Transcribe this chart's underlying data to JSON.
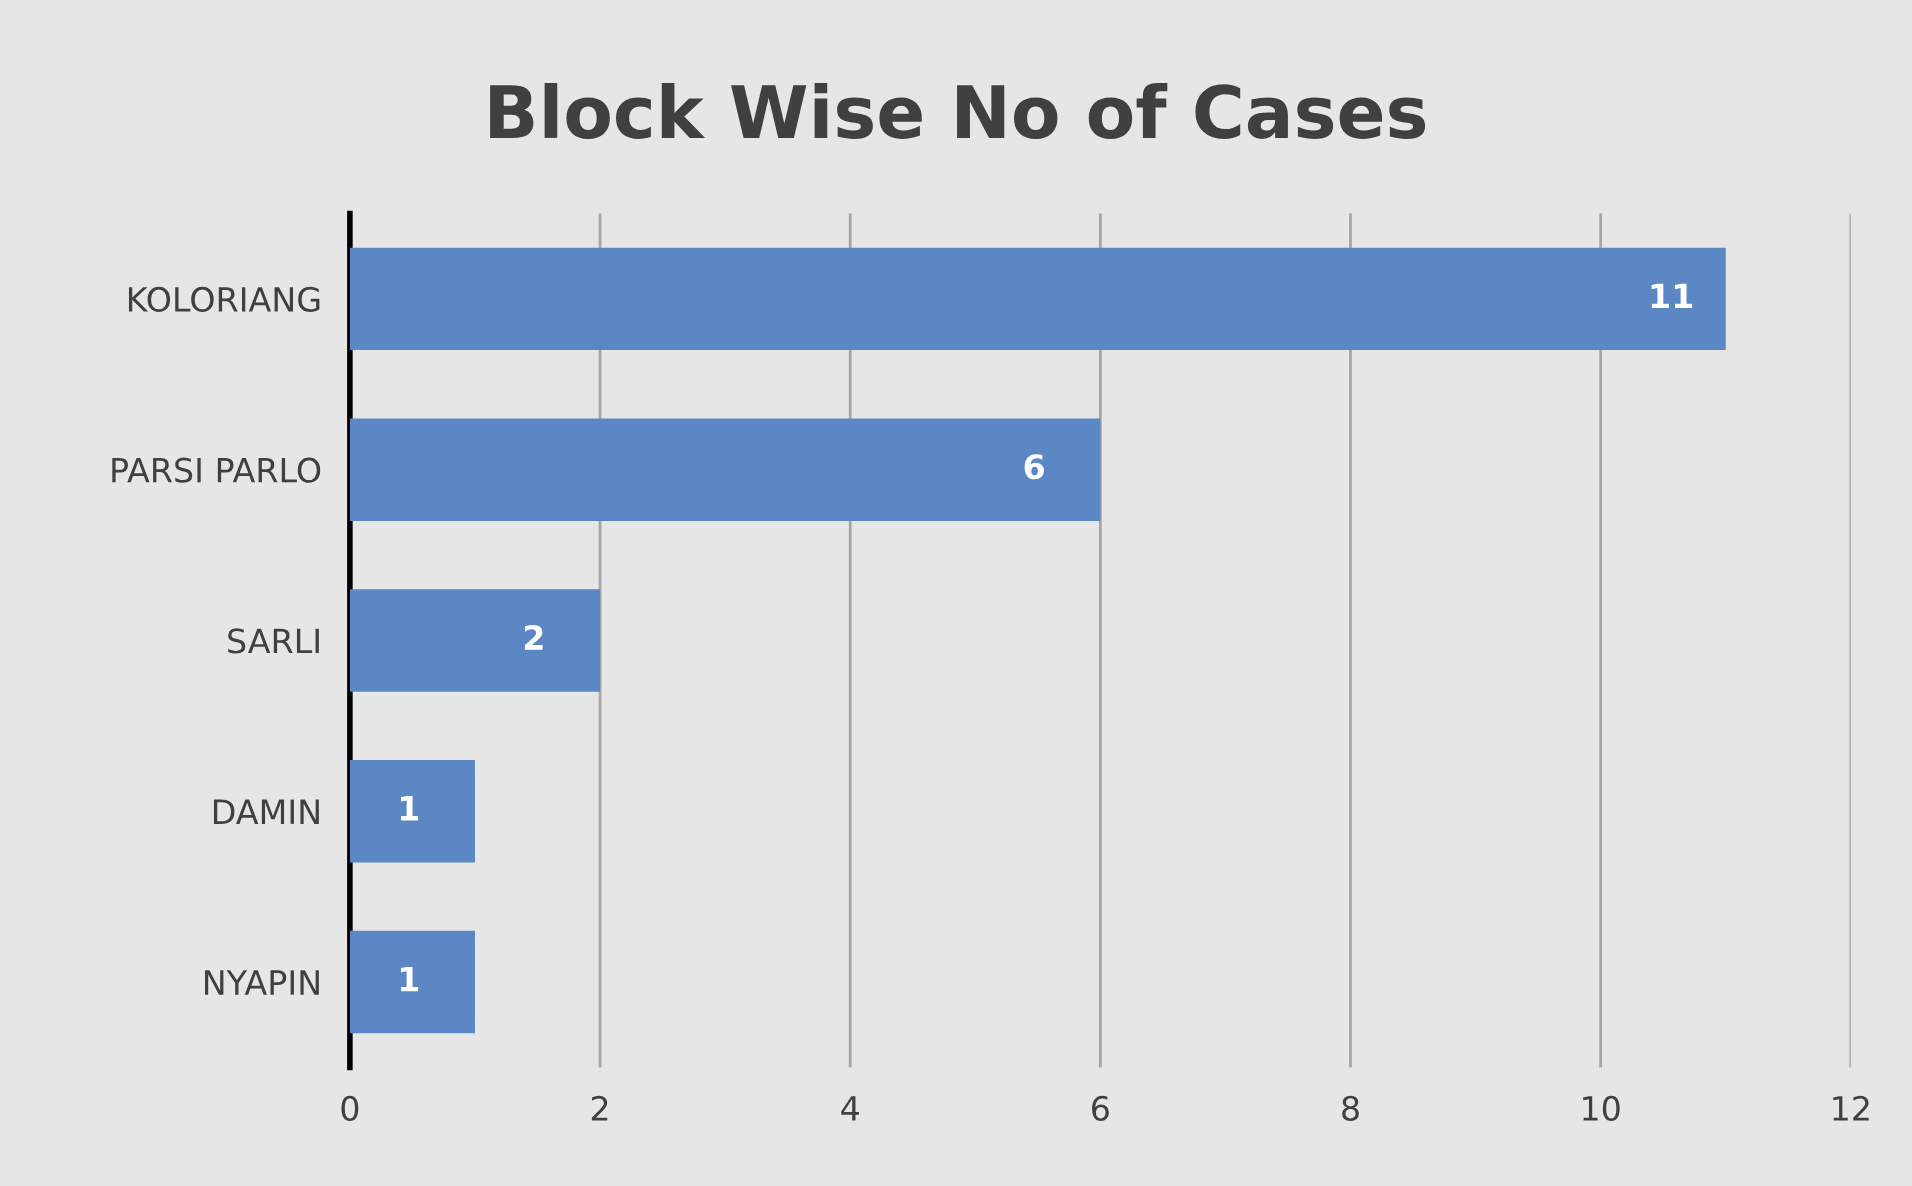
{
  "chart_data": {
    "type": "bar",
    "orientation": "horizontal",
    "title": "Block Wise No of Cases",
    "categories": [
      "KOLORIANG",
      "PARSI PARLO",
      "SARLI",
      "DAMIN",
      "NYAPIN"
    ],
    "values": [
      11,
      6,
      2,
      1,
      1
    ],
    "color": "#5b87c5",
    "xlim": [
      0,
      12
    ],
    "xticks": [
      0,
      2,
      4,
      6,
      8,
      10,
      12
    ],
    "grid": "x",
    "data_labels": true
  }
}
